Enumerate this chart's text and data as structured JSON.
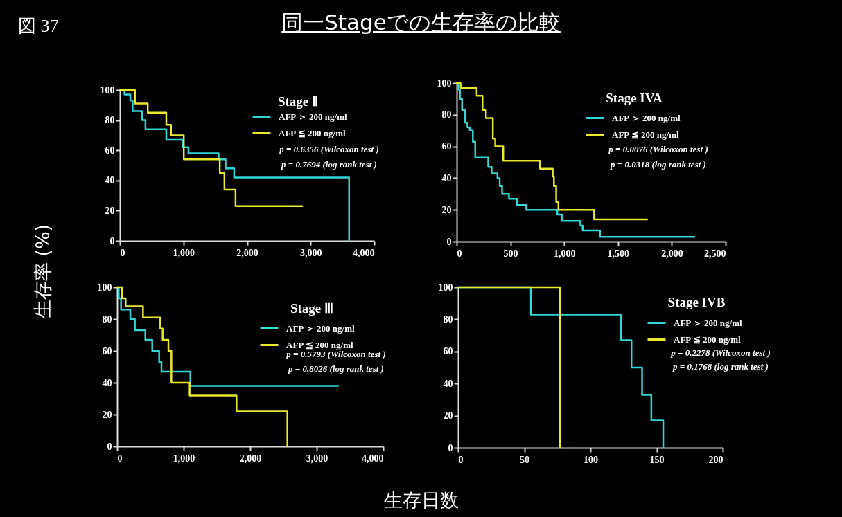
{
  "chart_data": [
    {
      "type": "other",
      "title": "同一Stageでの生存率の比較",
      "annotations": [
        "図 37"
      ],
      "xlabel": "生存日数",
      "ylabel": "生存率 (%)"
    },
    {
      "type": "step",
      "title": "Stage Ⅱ",
      "xlim": [
        0,
        4000
      ],
      "xticks": [
        0,
        {
          "value": 1000,
          "label": "1,000"
        },
        {
          "value": 2000,
          "label": "2,000"
        },
        {
          "value": 3000,
          "label": "3,000"
        },
        {
          "value": 4000,
          "label": "4,000"
        }
      ],
      "ylim": [
        0,
        100
      ],
      "yticks": [
        0,
        20,
        40,
        60,
        80,
        100
      ],
      "grid": false,
      "legend": "top right",
      "series": [
        {
          "name": "AFP ＞ 200 ng/ml",
          "color": "#33d6d6",
          "x": [
            0,
            73,
            164,
            200,
            347,
            402,
            730,
            986,
            1078,
            1553,
            1662,
            1797,
            3605
          ],
          "values": [
            100,
            97,
            93,
            86,
            80,
            74,
            67,
            62,
            58,
            54,
            48,
            42,
            0
          ]
        },
        {
          "name": "AFP ≦ 200 ng/ml",
          "color": "#e8e82e",
          "x": [
            0,
            237,
            438,
            730,
            804,
            1005,
            1571,
            1644,
            1819,
            2868
          ],
          "values": [
            100,
            91,
            85,
            77,
            70,
            54,
            45,
            34,
            23,
            23
          ]
        }
      ],
      "annotations": [
        "p = 0.6356 (Wilcoxon test )",
        "p = 0.7694 (log rank test )"
      ]
    },
    {
      "type": "step",
      "title": "Stage IVA",
      "xlim": [
        0,
        2500
      ],
      "xticks": [
        0,
        500,
        {
          "value": 1000,
          "label": "1,000"
        },
        {
          "value": 1500,
          "label": "1,500"
        },
        {
          "value": 2000,
          "label": "2,000"
        },
        {
          "value": 2500,
          "label": "2,500"
        }
      ],
      "ylim": [
        0,
        100
      ],
      "yticks": [
        0,
        20,
        40,
        60,
        80,
        100
      ],
      "grid": false,
      "legend": "top right",
      "series": [
        {
          "name": "AFP ＞ 200 ng/ml",
          "color": "#33d6d6",
          "x": [
            0,
            15,
            30,
            50,
            79,
            100,
            122,
            150,
            172,
            293,
            325,
            379,
            400,
            422,
            486,
            561,
            647,
            936,
            980,
            1150,
            1171,
            1332,
            2210
          ],
          "values": [
            100,
            96,
            90,
            83,
            75,
            72,
            70,
            63,
            53,
            47,
            43,
            40,
            35,
            30,
            27,
            23,
            20,
            17,
            13,
            10,
            7,
            3,
            3
          ]
        },
        {
          "name": "AFP ≦ 200 ng/ml",
          "color": "#e8e82e",
          "x": [
            0,
            36,
            186,
            240,
            272,
            336,
            358,
            433,
            775,
            893,
            904,
            925,
            946,
            1278,
            1771
          ],
          "values": [
            100,
            97,
            92,
            83,
            78,
            65,
            60,
            51,
            46,
            41,
            35,
            25,
            20,
            14,
            14
          ]
        }
      ],
      "annotations": [
        "p = 0.0076 (Wilcoxon test )",
        "p = 0.0318 (log rank test )"
      ]
    },
    {
      "type": "step",
      "title": "Stage Ⅲ",
      "xlim": [
        0,
        4000
      ],
      "xticks": [
        0,
        {
          "value": 1000,
          "label": "1,000"
        },
        {
          "value": 2000,
          "label": "2,000"
        },
        {
          "value": 3000,
          "label": "3,000"
        },
        {
          "value": 4000,
          "label": "4,000"
        }
      ],
      "ylim": [
        0,
        100
      ],
      "yticks": [
        0,
        20,
        40,
        60,
        80,
        100
      ],
      "grid": false,
      "legend": "top right",
      "series": [
        {
          "name": "AFP ＞ 200 ng/ml",
          "color": "#33d6d6",
          "x": [
            0,
            24,
            59,
            198,
            267,
            424,
            528,
            632,
            667,
            1101,
            3323
          ],
          "values": [
            100,
            93,
            86,
            80,
            73,
            67,
            60,
            53,
            47,
            38,
            38
          ]
        },
        {
          "name": "AFP ≦ 200 ng/ml",
          "color": "#e8e82e",
          "x": [
            0,
            76,
            128,
            389,
            649,
            684,
            771,
            816,
            1090,
            1795,
            2559
          ],
          "values": [
            100,
            93,
            88,
            81,
            74,
            67,
            60,
            40,
            32,
            22,
            0
          ]
        }
      ],
      "annotations": [
        "p = 0.5793 (Wilcoxon test )",
        "p = 0.8026 (log rank test )"
      ]
    },
    {
      "type": "step",
      "title": "Stage IVB",
      "xlim": [
        0,
        200
      ],
      "xticks": [
        0,
        50,
        100,
        150,
        200
      ],
      "ylim": [
        0,
        100
      ],
      "yticks": [
        0,
        20,
        40,
        60,
        80,
        100
      ],
      "grid": false,
      "legend": "top right",
      "series": [
        {
          "name": "AFP ＞ 200 ng/ml",
          "color": "#33d6d6",
          "x": [
            0,
            55,
            123,
            131,
            139,
            146,
            155
          ],
          "values": [
            100,
            83,
            67,
            50,
            33,
            17,
            0
          ]
        },
        {
          "name": "AFP ≦ 200 ng/ml",
          "color": "#e8e82e",
          "x": [
            0,
            77
          ],
          "values": [
            100,
            0
          ]
        }
      ],
      "annotations": [
        "p = 0.2278 (Wilcoxon test )",
        "p = 0.1768 (log rank test )"
      ]
    }
  ]
}
